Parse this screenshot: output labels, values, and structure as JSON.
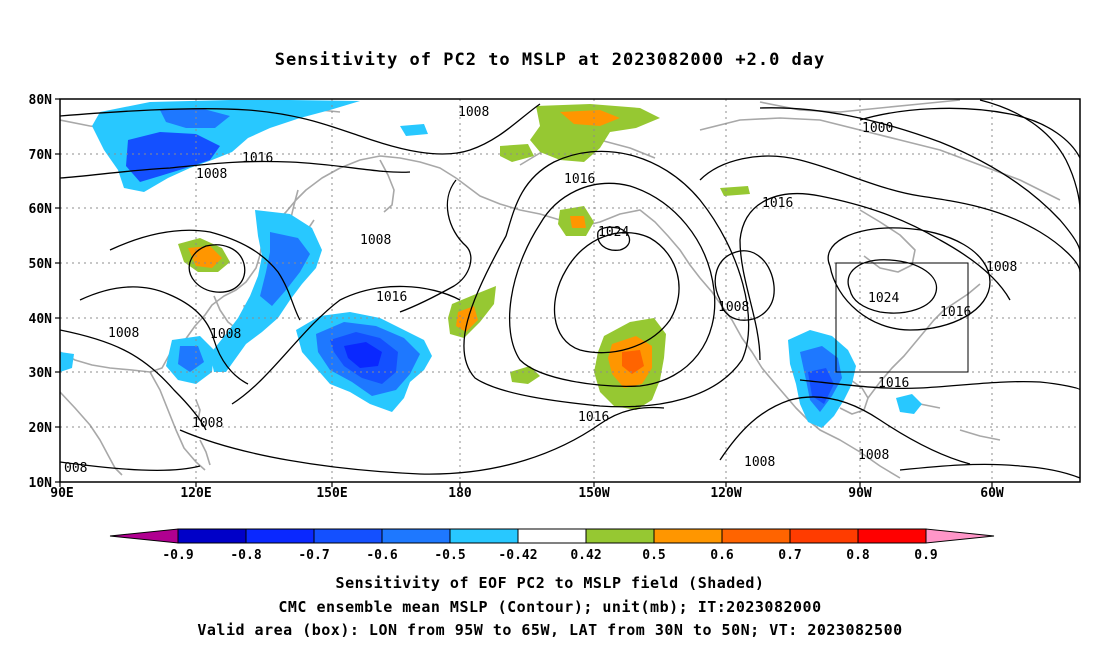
{
  "title": "Sensitivity of PC2 to MSLP at 2023082000 +2.0 day",
  "axes": {
    "lat_labels": [
      "80N",
      "70N",
      "60N",
      "50N",
      "40N",
      "30N",
      "20N",
      "10N"
    ],
    "lon_labels": [
      "90E",
      "120E",
      "150E",
      "180",
      "150W",
      "120W",
      "90W",
      "60W"
    ]
  },
  "contour_labels": [
    "1008",
    "1016",
    "1008",
    "1016",
    "1008",
    "1016",
    "1024",
    "1016",
    "1000",
    "1008",
    "1024",
    "1016",
    "1016",
    "1008",
    "1016",
    "1008",
    "1008",
    "1008",
    "1008",
    "008"
  ],
  "colorbar": {
    "labels": [
      "-0.9",
      "-0.8",
      "-0.7",
      "-0.6",
      "-0.5",
      "-0.42",
      "0.42",
      "0.5",
      "0.6",
      "0.7",
      "0.8",
      "0.9"
    ],
    "colors": [
      "#b00090",
      "#0000c8",
      "#0a28ff",
      "#1450ff",
      "#1e78ff",
      "#28c8ff",
      "#ffffff",
      "#96c832",
      "#ff9600",
      "#ff6400",
      "#ff3c00",
      "#ff0000",
      "#ff96c8"
    ]
  },
  "caption": {
    "line1": "Sensitivity of EOF PC2 to MSLP field (Shaded)",
    "line2": "CMC ensemble mean MSLP (Contour); unit(mb); IT:2023082000",
    "line3": "Valid area (box): LON from 95W to 65W, LAT from 30N to 50N; VT: 2023082500"
  },
  "valid_box": {
    "lon_west": "95W",
    "lon_east": "65W",
    "lat_south": "30N",
    "lat_north": "50N"
  }
}
